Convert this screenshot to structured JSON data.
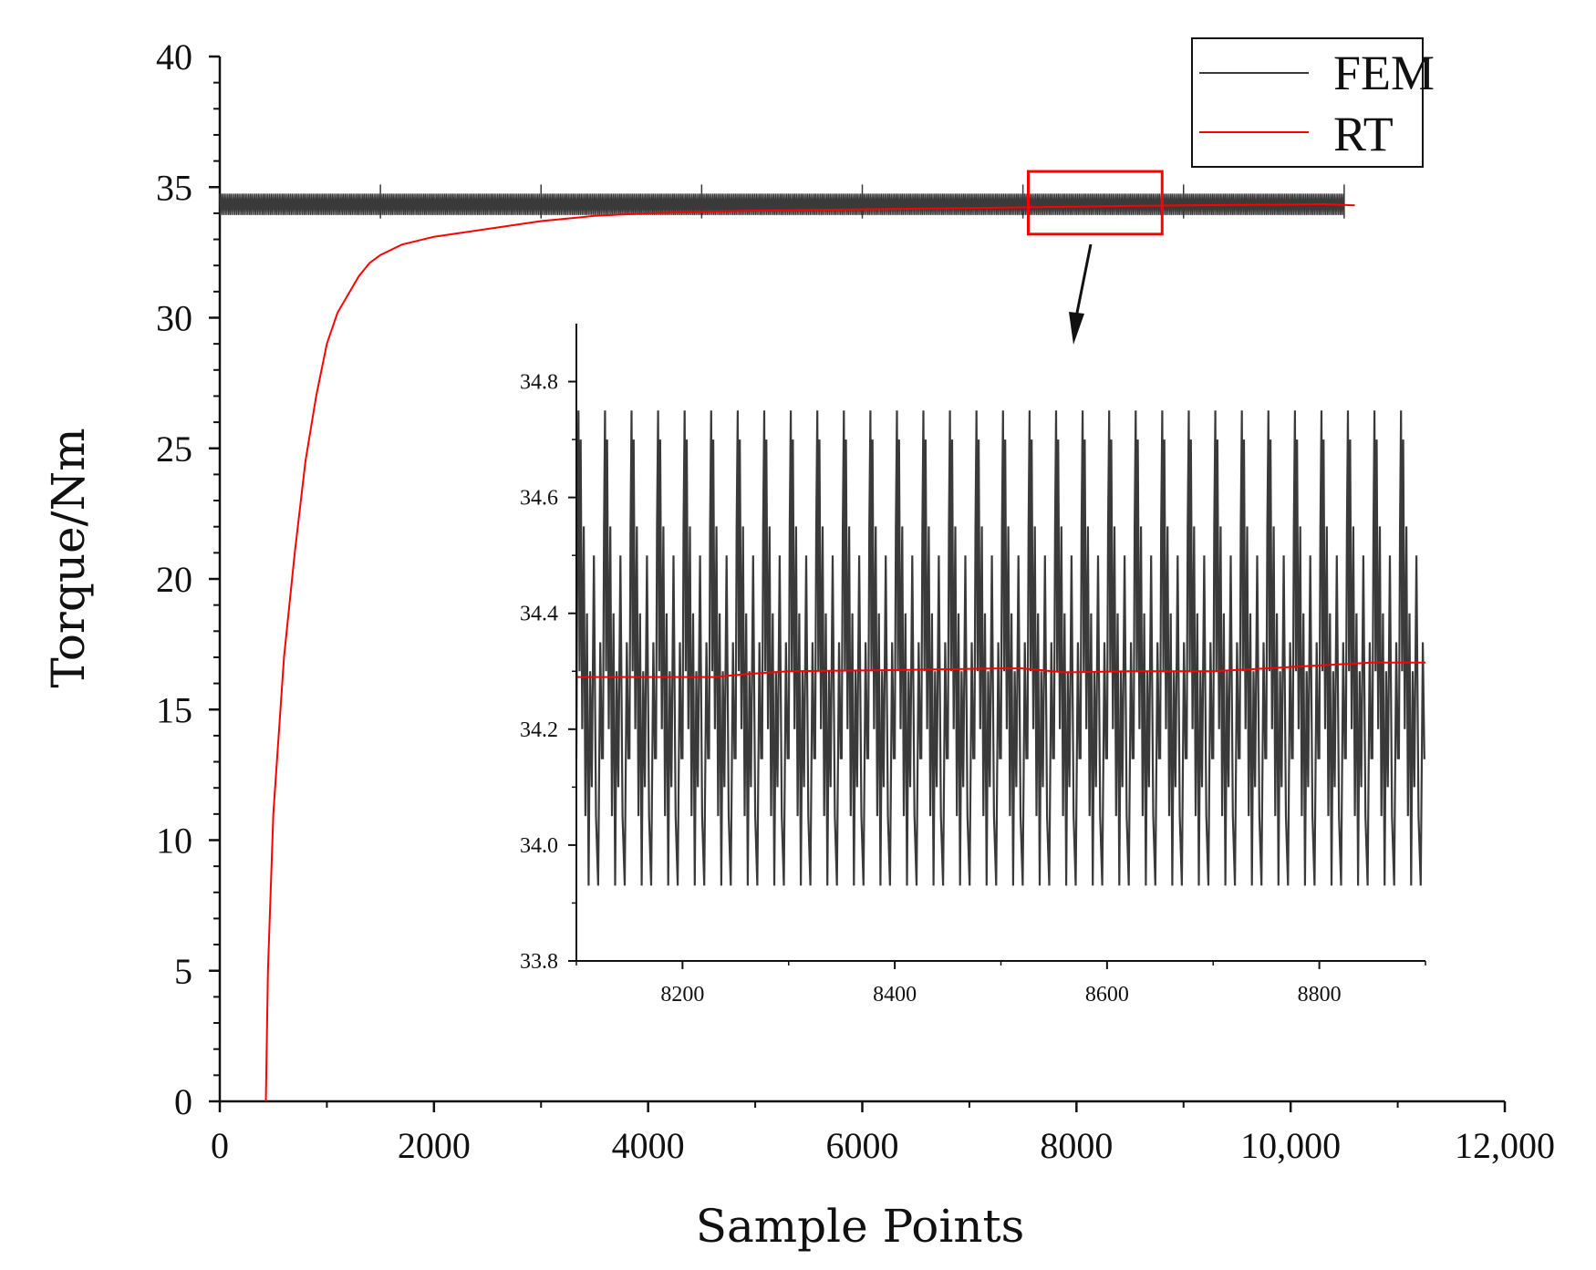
{
  "chart_data": [
    {
      "type": "line",
      "xlabel": "Sample Points",
      "ylabel": "Torque/Nm",
      "xlim": [
        0,
        12000
      ],
      "ylim": [
        0,
        40
      ],
      "x_ticks": [
        "0",
        "2000",
        "4000",
        "6000",
        "8000",
        "10,000",
        "12,000"
      ],
      "y_ticks": [
        "0",
        "5",
        "10",
        "15",
        "20",
        "25",
        "30",
        "35",
        "40"
      ],
      "legend": {
        "position": "top-right",
        "entries": [
          "FEM",
          "RT"
        ]
      },
      "grid": false,
      "series": [
        {
          "name": "FEM",
          "color": "#3a3a3a",
          "description_of_shape": "high-frequency oscillation",
          "x_range": [
            0,
            10500
          ],
          "mean": 34.35,
          "min": 33.93,
          "max": 34.75
        },
        {
          "name": "RT",
          "color": "#ff0000",
          "x": [
            430,
            450,
            500,
            600,
            700,
            800,
            900,
            1000,
            1100,
            1200,
            1300,
            1400,
            1500,
            1700,
            2000,
            2500,
            3000,
            3500,
            4000,
            5000,
            6000,
            7000,
            8000,
            8500,
            9000,
            9500,
            10000,
            10300,
            10600
          ],
          "y": [
            0,
            5,
            11,
            17,
            21,
            24.5,
            27,
            29,
            30.2,
            30.9,
            31.6,
            32.1,
            32.4,
            32.8,
            33.1,
            33.4,
            33.7,
            33.9,
            34.0,
            34.1,
            34.15,
            34.2,
            34.25,
            34.28,
            34.3,
            34.32,
            34.33,
            34.35,
            34.3
          ]
        }
      ],
      "highlight_box": {
        "x_range": [
          7550,
          8800
        ],
        "y_range": [
          33.2,
          35.6
        ],
        "color": "#ff0000"
      }
    },
    {
      "type": "line",
      "xlim": [
        8100,
        8900
      ],
      "ylim": [
        33.8,
        34.9
      ],
      "x_ticks": [
        "8200",
        "8400",
        "8600",
        "8800"
      ],
      "y_ticks": [
        "33.8",
        "34.0",
        "34.2",
        "34.4",
        "34.6",
        "34.8"
      ],
      "series": [
        {
          "name": "FEM",
          "color": "#3a3a3a",
          "periods": 32,
          "min": 33.93,
          "max": 34.75
        },
        {
          "name": "RT",
          "color": "#ff0000",
          "x": [
            8100,
            8230,
            8260,
            8300,
            8400,
            8500,
            8520,
            8560,
            8620,
            8700,
            8800,
            8850,
            8900
          ],
          "y": [
            34.29,
            34.29,
            34.295,
            34.3,
            34.302,
            34.305,
            34.305,
            34.298,
            34.3,
            34.3,
            34.31,
            34.315,
            34.315
          ]
        }
      ]
    }
  ]
}
